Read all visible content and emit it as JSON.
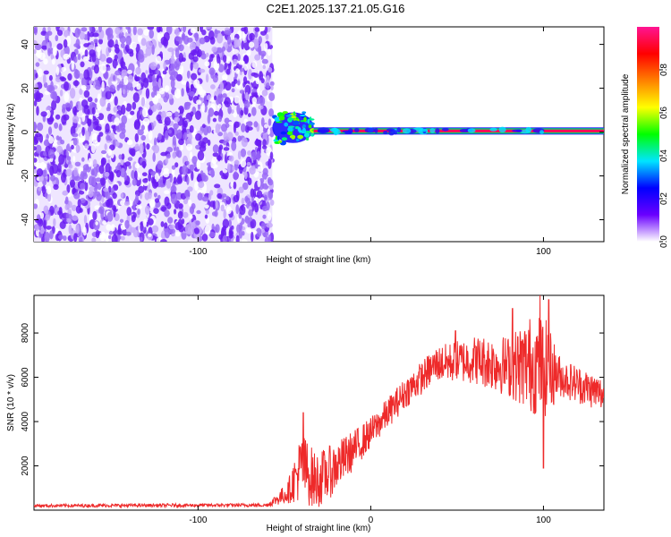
{
  "title": "C2E1.2025.137.21.05.G16",
  "chart_data": [
    {
      "type": "heatmap",
      "xlabel": "Height of straight line (km)",
      "ylabel": "Frequency (Hz)",
      "xlim": [
        -195,
        135
      ],
      "ylim": [
        -50,
        48
      ],
      "x_ticks": [
        -100,
        0,
        100
      ],
      "x_tick_labels": [
        "-100",
        "",
        "100"
      ],
      "y_ticks": [
        -40,
        -20,
        0,
        20,
        40
      ],
      "y_tick_labels": [
        "-40",
        "-20",
        "0",
        "20",
        "40"
      ],
      "colorbar": {
        "label": "Normalized spectral amplitude",
        "range": [
          0,
          1
        ],
        "ticks": [
          0.0,
          0.2,
          0.4,
          0.6,
          0.8
        ],
        "tick_labels": [
          "0.0",
          "0.2",
          "0.4",
          "0.6",
          "0.8"
        ],
        "colormap": [
          "#ffffff",
          "#6a00ff",
          "#0000ff",
          "#00e5ff",
          "#00ff00",
          "#ffff00",
          "#ff8000",
          "#ff0000",
          "#ff1493"
        ]
      },
      "regions": [
        {
          "name": "noise",
          "x_range": [
            -195,
            -57
          ],
          "f_range": [
            -50,
            48
          ],
          "amplitude_range": [
            0.0,
            0.15
          ]
        },
        {
          "name": "onset_blob",
          "x_range": [
            -57,
            -33
          ],
          "f_range": [
            -5,
            9
          ],
          "amplitude_range": [
            0.2,
            0.6
          ]
        },
        {
          "name": "signal_line",
          "x_range": [
            -33,
            135
          ],
          "f_center": 0.5,
          "amplitude": 0.95
        }
      ]
    },
    {
      "type": "line",
      "xlabel": "Height of straight line (km)",
      "ylabel": "SNR (10 * v/v)",
      "xlim": [
        -195,
        135
      ],
      "ylim": [
        0,
        9700
      ],
      "x_ticks": [
        -100,
        0,
        100
      ],
      "x_tick_labels": [
        "-100",
        "0",
        "100"
      ],
      "y_ticks": [
        2000,
        4000,
        6000,
        8000
      ],
      "y_tick_labels": [
        "2000",
        "4000",
        "6000",
        "8000"
      ],
      "color": "#ee2a2a",
      "profile": [
        {
          "x": -195,
          "mean": 200,
          "spread": 70
        },
        {
          "x": -60,
          "mean": 230,
          "spread": 80
        },
        {
          "x": -48,
          "mean": 800,
          "spread": 500
        },
        {
          "x": -40,
          "mean": 2000,
          "spread": 1600
        },
        {
          "x": -32,
          "mean": 1300,
          "spread": 1300
        },
        {
          "x": -24,
          "mean": 1700,
          "spread": 1200
        },
        {
          "x": -10,
          "mean": 2700,
          "spread": 900
        },
        {
          "x": 0,
          "mean": 3500,
          "spread": 700
        },
        {
          "x": 20,
          "mean": 5300,
          "spread": 700
        },
        {
          "x": 38,
          "mean": 6600,
          "spread": 800
        },
        {
          "x": 60,
          "mean": 6800,
          "spread": 1100
        },
        {
          "x": 80,
          "mean": 6500,
          "spread": 1400
        },
        {
          "x": 92,
          "mean": 6600,
          "spread": 2200
        },
        {
          "x": 100,
          "mean": 6500,
          "spread": 2400
        },
        {
          "x": 110,
          "mean": 6000,
          "spread": 900
        },
        {
          "x": 135,
          "mean": 5200,
          "spread": 800
        }
      ],
      "peaks": [
        {
          "x": -39,
          "y": 4400
        },
        {
          "x": 98,
          "y": 9700
        },
        {
          "x": 103,
          "y": 9500
        },
        {
          "x": 82,
          "y": 9100
        },
        {
          "x": 49,
          "y": 8100
        },
        {
          "x": 100,
          "y": 1900
        }
      ]
    }
  ]
}
